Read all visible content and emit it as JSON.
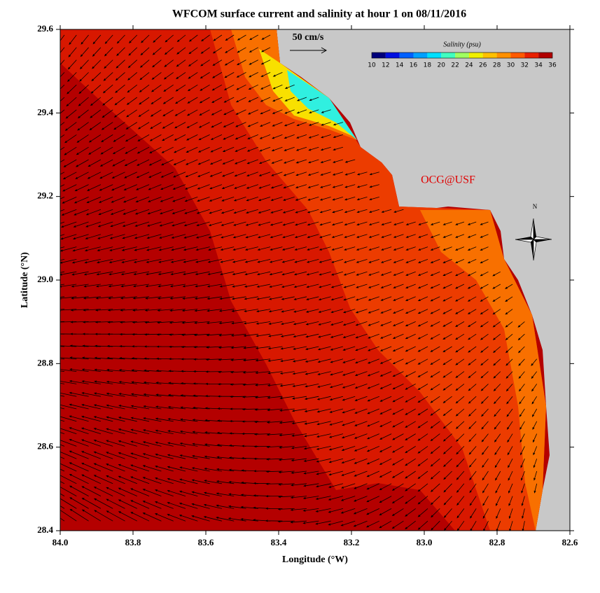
{
  "title": "WFCOM surface current and salinity at hour 1 on 08/11/2016",
  "x_axis": {
    "label": "Longitude (°W)",
    "lim": [
      84.0,
      82.6
    ],
    "ticks": [
      {
        "value": 84.0,
        "label": "84.0"
      },
      {
        "value": 83.8,
        "label": "83.8"
      },
      {
        "value": 83.6,
        "label": "83.6"
      },
      {
        "value": 83.4,
        "label": "83.4"
      },
      {
        "value": 83.2,
        "label": "83.2"
      },
      {
        "value": 83.0,
        "label": "83.0"
      },
      {
        "value": 82.8,
        "label": "82.8"
      },
      {
        "value": 82.6,
        "label": "82.6"
      }
    ]
  },
  "y_axis": {
    "label": "Latitude (°N)",
    "lim": [
      28.4,
      29.6
    ],
    "ticks": [
      {
        "value": 28.4,
        "label": "28.4"
      },
      {
        "value": 28.6,
        "label": "28.6"
      },
      {
        "value": 28.8,
        "label": "28.8"
      },
      {
        "value": 29.0,
        "label": "29.0"
      },
      {
        "value": 29.2,
        "label": "29.2"
      },
      {
        "value": 29.4,
        "label": "29.4"
      },
      {
        "value": 29.6,
        "label": "29.6"
      }
    ]
  },
  "colorbar": {
    "title": "Salinity (psu)",
    "lim": [
      10,
      36
    ],
    "ticks": [
      10,
      12,
      14,
      16,
      18,
      20,
      22,
      24,
      26,
      28,
      30,
      32,
      34,
      36
    ],
    "colors": [
      "#00007a",
      "#0010e0",
      "#0060ff",
      "#00a0ff",
      "#00e0ff",
      "#40ffc0",
      "#a0ff60",
      "#f0f000",
      "#ffc000",
      "#ff9000",
      "#ff5a00",
      "#e82000",
      "#b00000"
    ]
  },
  "scale_label": "50 cm/s",
  "credit": "OCG@USF",
  "north_label": "N"
}
